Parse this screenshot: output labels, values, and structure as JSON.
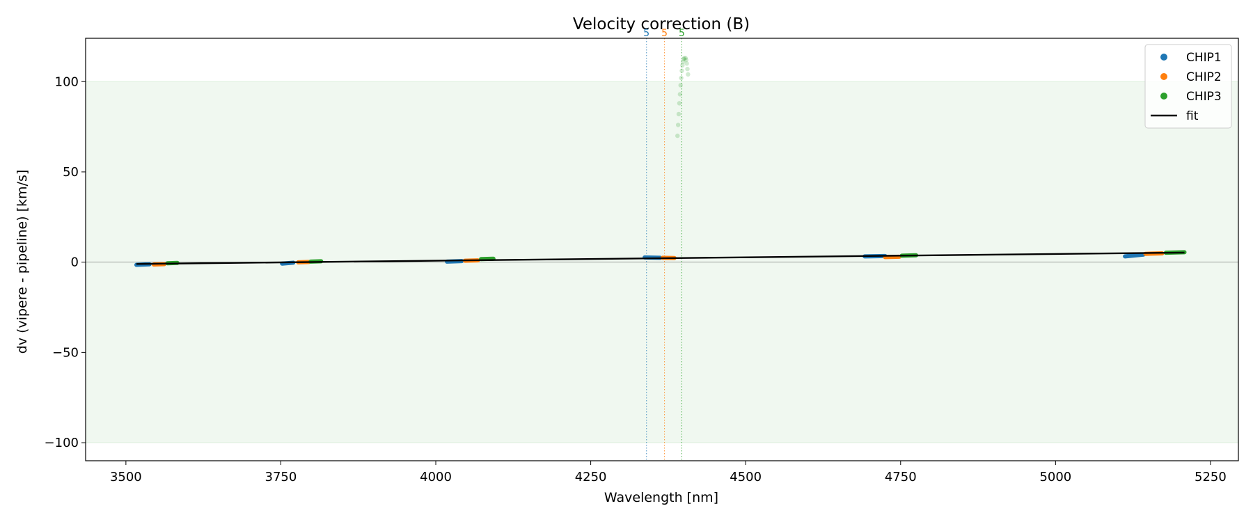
{
  "chart_data": {
    "type": "scatter",
    "title": "Velocity correction (B)",
    "xlabel": "Wavelength [nm]",
    "ylabel": "dv (vipere - pipeline) [km/s]",
    "xlim": [
      3435,
      5295
    ],
    "ylim": [
      -110,
      124
    ],
    "xticks": [
      3500,
      3750,
      4000,
      4250,
      4500,
      4750,
      5000,
      5250
    ],
    "yticks": [
      -100,
      -50,
      0,
      50,
      100
    ],
    "shaded_band": [
      -100,
      100
    ],
    "zero_line": 0,
    "colors": {
      "CHIP1": "#1f77b4",
      "CHIP2": "#ff7f0e",
      "CHIP3": "#2ca02c",
      "fit": "#000000",
      "band": "#2ca02c"
    },
    "series": [
      {
        "name": "CHIP1",
        "clusters": [
          {
            "x0": 3517,
            "x1": 3538,
            "y0": -1.5,
            "y1": -1.2
          },
          {
            "x0": 3752,
            "x1": 3770,
            "y0": -0.8,
            "y1": -0.3
          },
          {
            "x0": 4018,
            "x1": 4042,
            "y0": 0.3,
            "y1": 0.6
          },
          {
            "x0": 4337,
            "x1": 4362,
            "y0": 2.6,
            "y1": 2.4
          },
          {
            "x0": 4692,
            "x1": 4725,
            "y0": 3.2,
            "y1": 3.4
          },
          {
            "x0": 5112,
            "x1": 5142,
            "y0": 3.2,
            "y1": 4.2
          }
        ]
      },
      {
        "name": "CHIP2",
        "clusters": [
          {
            "x0": 3545,
            "x1": 3562,
            "y0": -1.3,
            "y1": -1.1
          },
          {
            "x0": 3778,
            "x1": 3795,
            "y0": -0.1,
            "y1": 0.1
          },
          {
            "x0": 4047,
            "x1": 4068,
            "y0": 0.8,
            "y1": 1.0
          },
          {
            "x0": 4366,
            "x1": 4385,
            "y0": 2.4,
            "y1": 2.3
          },
          {
            "x0": 4725,
            "x1": 4748,
            "y0": 2.8,
            "y1": 3.0
          },
          {
            "x0": 5145,
            "x1": 5172,
            "y0": 4.6,
            "y1": 4.9
          }
        ]
      },
      {
        "name": "CHIP3",
        "clusters": [
          {
            "x0": 3567,
            "x1": 3583,
            "y0": -0.6,
            "y1": -0.4
          },
          {
            "x0": 3798,
            "x1": 3815,
            "y0": 0.3,
            "y1": 0.5
          },
          {
            "x0": 4073,
            "x1": 4093,
            "y0": 1.7,
            "y1": 1.9
          },
          {
            "x0": 4752,
            "x1": 4775,
            "y0": 3.6,
            "y1": 3.8
          },
          {
            "x0": 5178,
            "x1": 5208,
            "y0": 5.2,
            "y1": 5.5
          }
        ]
      }
    ],
    "outliers": [
      {
        "series": "CHIP3",
        "x": 4390,
        "y": 70
      },
      {
        "series": "CHIP3",
        "x": 4391,
        "y": 76
      },
      {
        "series": "CHIP3",
        "x": 4392,
        "y": 82
      },
      {
        "series": "CHIP3",
        "x": 4393,
        "y": 88
      },
      {
        "series": "CHIP3",
        "x": 4394,
        "y": 93
      },
      {
        "series": "CHIP3",
        "x": 4395,
        "y": 98
      },
      {
        "series": "CHIP3",
        "x": 4396,
        "y": 102
      },
      {
        "series": "CHIP3",
        "x": 4397,
        "y": 106
      },
      {
        "series": "CHIP3",
        "x": 4398,
        "y": 109
      },
      {
        "series": "CHIP3",
        "x": 4399,
        "y": 111
      },
      {
        "series": "CHIP3",
        "x": 4400,
        "y": 112.5
      },
      {
        "series": "CHIP3",
        "x": 4401,
        "y": 113
      },
      {
        "series": "CHIP3",
        "x": 4403,
        "y": 113
      },
      {
        "series": "CHIP3",
        "x": 4404,
        "y": 112
      },
      {
        "series": "CHIP3",
        "x": 4405,
        "y": 110
      },
      {
        "series": "CHIP3",
        "x": 4406,
        "y": 107
      },
      {
        "series": "CHIP3",
        "x": 4407,
        "y": 104
      }
    ],
    "fit": {
      "x": [
        3517,
        5208
      ],
      "y": [
        -1.0,
        5.3
      ]
    },
    "vertical_markers": [
      {
        "x": 4340,
        "label": "5",
        "series": "CHIP1"
      },
      {
        "x": 4369,
        "label": "5",
        "series": "CHIP2"
      },
      {
        "x": 4397,
        "label": "5",
        "series": "CHIP3"
      }
    ],
    "legend": {
      "position": "top-right",
      "entries": [
        {
          "label": "CHIP1",
          "kind": "marker",
          "color": "#1f77b4"
        },
        {
          "label": "CHIP2",
          "kind": "marker",
          "color": "#ff7f0e"
        },
        {
          "label": "CHIP3",
          "kind": "marker",
          "color": "#2ca02c"
        },
        {
          "label": "fit",
          "kind": "line",
          "color": "#000000"
        }
      ]
    }
  }
}
